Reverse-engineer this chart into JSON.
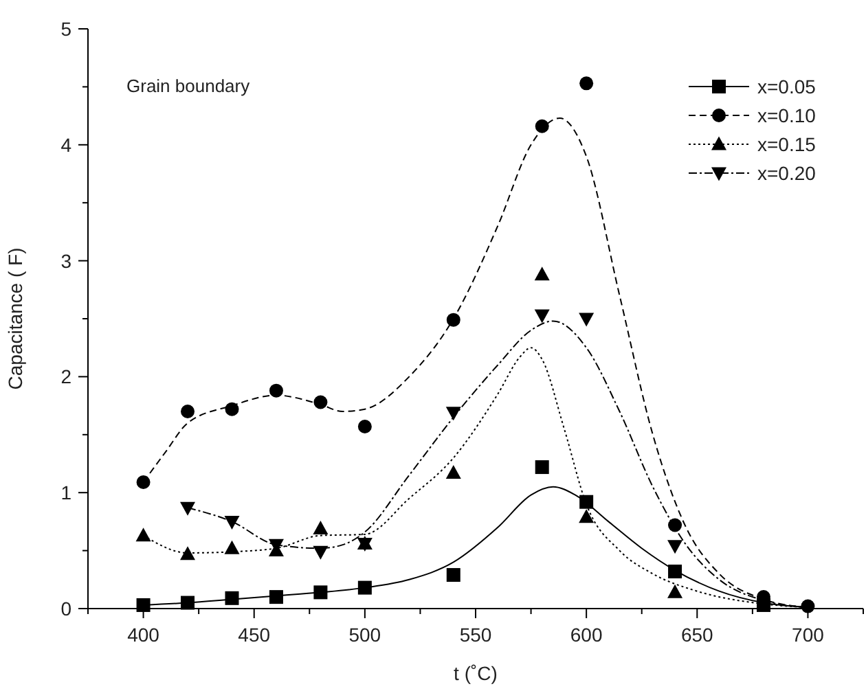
{
  "chart_data": {
    "type": "scatter",
    "xlabel": "t (˚C)",
    "ylabel": "Capacitance ( F)",
    "annotations": [
      "Grain boundary"
    ],
    "xlim": [
      375,
      725
    ],
    "xticks": [
      {
        "value": 375,
        "label": null
      },
      400,
      {
        "value": 425,
        "label": null
      },
      450,
      {
        "value": 475,
        "label": null
      },
      500,
      {
        "value": 525,
        "label": null
      },
      550,
      {
        "value": 575,
        "label": null
      },
      600,
      {
        "value": 625,
        "label": null
      },
      650,
      {
        "value": 675,
        "label": null
      },
      700,
      {
        "value": 725,
        "label": null
      }
    ],
    "ylim": [
      0,
      5
    ],
    "yticks": [
      0,
      {
        "value": 0.5,
        "label": null
      },
      1,
      {
        "value": 1.5,
        "label": null
      },
      2,
      {
        "value": 2.5,
        "label": null
      },
      3,
      {
        "value": 3.5,
        "label": null
      },
      4,
      {
        "value": 4.5,
        "label": null
      },
      5
    ],
    "grid": false,
    "legend": "top right",
    "series": [
      {
        "name": "x=0.05",
        "marker": "square",
        "color": "#000000",
        "x": [
          400,
          420,
          440,
          460,
          480,
          500,
          540,
          580,
          600,
          640,
          680
        ],
        "values": [
          0.03,
          0.05,
          0.09,
          0.1,
          0.14,
          0.18,
          0.29,
          1.22,
          0.92,
          0.32,
          0.03
        ]
      },
      {
        "type": "line",
        "marker": "none",
        "line_style": "solid",
        "color": "#000000",
        "x": [
          400,
          420,
          440,
          460,
          480,
          500,
          520,
          540,
          560,
          575,
          585,
          595,
          610,
          625,
          640,
          660,
          680,
          700
        ],
        "values": [
          0.03,
          0.05,
          0.08,
          0.11,
          0.14,
          0.18,
          0.25,
          0.4,
          0.7,
          0.98,
          1.05,
          0.98,
          0.75,
          0.52,
          0.33,
          0.15,
          0.05,
          0.01
        ]
      },
      {
        "name": "x=0.10",
        "marker": "circle",
        "color": "#000000",
        "x": [
          400,
          420,
          440,
          460,
          480,
          500,
          540,
          580,
          600,
          640,
          680,
          700
        ],
        "values": [
          1.09,
          1.7,
          1.72,
          1.88,
          1.78,
          1.57,
          2.49,
          4.16,
          4.53,
          0.72,
          0.1,
          0.02
        ]
      },
      {
        "type": "line",
        "marker": "none",
        "line_style": "dashed",
        "color": "#000000",
        "x": [
          400,
          410,
          420,
          440,
          460,
          480,
          490,
          500,
          520,
          540,
          560,
          575,
          588,
          600,
          615,
          630,
          645,
          660,
          680,
          700
        ],
        "values": [
          1.09,
          1.35,
          1.6,
          1.75,
          1.84,
          1.76,
          1.7,
          1.72,
          2.0,
          2.5,
          3.3,
          4.0,
          4.23,
          3.9,
          2.7,
          1.5,
          0.7,
          0.3,
          0.08,
          0.01
        ]
      },
      {
        "name": "x=0.15",
        "marker": "triangle",
        "color": "#000000",
        "x": [
          400,
          420,
          440,
          460,
          480,
          500,
          540,
          580,
          600,
          640
        ],
        "values": [
          0.63,
          0.47,
          0.52,
          0.5,
          0.69,
          0.56,
          1.17,
          2.88,
          0.79,
          0.14
        ]
      },
      {
        "type": "line",
        "marker": "none",
        "line_style": "dotted",
        "color": "#000000",
        "x": [
          400,
          420,
          440,
          460,
          480,
          500,
          520,
          540,
          560,
          570,
          575,
          580,
          590,
          600,
          615,
          630,
          650,
          680,
          700
        ],
        "values": [
          0.63,
          0.48,
          0.49,
          0.52,
          0.63,
          0.64,
          0.95,
          1.3,
          1.85,
          2.17,
          2.25,
          2.15,
          1.55,
          0.9,
          0.5,
          0.3,
          0.15,
          0.04,
          0.01
        ]
      },
      {
        "name": "x=0.20",
        "marker": "triangle-down",
        "color": "#000000",
        "x": [
          420,
          440,
          460,
          480,
          500,
          540,
          580,
          600,
          640
        ],
        "values": [
          0.87,
          0.75,
          0.55,
          0.49,
          0.56,
          1.69,
          2.53,
          2.5,
          0.54
        ]
      },
      {
        "type": "line",
        "marker": "none",
        "line_style": "dashdot",
        "color": "#000000",
        "x": [
          420,
          440,
          460,
          480,
          490,
          500,
          520,
          540,
          560,
          575,
          585,
          600,
          615,
          630,
          645,
          660,
          680,
          700
        ],
        "values": [
          0.87,
          0.75,
          0.55,
          0.52,
          0.55,
          0.66,
          1.15,
          1.65,
          2.1,
          2.4,
          2.48,
          2.25,
          1.7,
          1.05,
          0.55,
          0.25,
          0.07,
          0.01
        ]
      }
    ]
  }
}
